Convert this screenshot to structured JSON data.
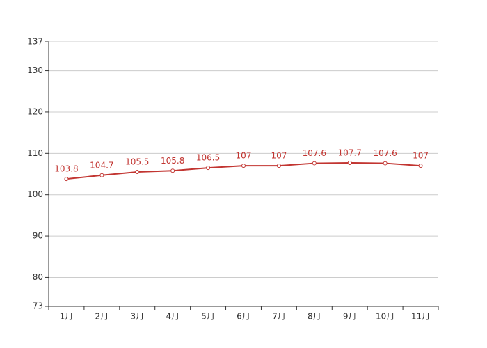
{
  "chart_data": {
    "type": "line",
    "categories": [
      "1月",
      "2月",
      "3月",
      "4月",
      "5月",
      "6月",
      "7月",
      "8月",
      "9月",
      "10月",
      "11月"
    ],
    "values": [
      103.8,
      104.7,
      105.5,
      105.8,
      106.5,
      107,
      107,
      107.6,
      107.7,
      107.6,
      107
    ],
    "color": "#c23531",
    "ylim": [
      73,
      137
    ],
    "yticks": [
      73,
      80,
      90,
      100,
      110,
      120,
      130,
      137
    ],
    "grid": true
  }
}
